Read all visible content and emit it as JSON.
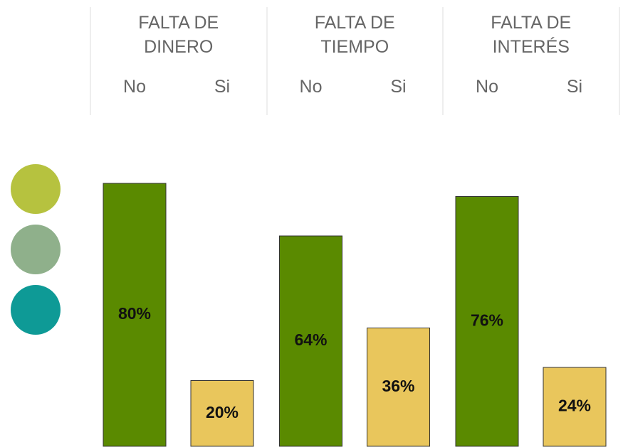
{
  "chart_data": {
    "type": "bar",
    "groups": [
      "FALTA DE DINERO",
      "FALTA DE TIEMPO",
      "FALTA DE INTERÉS"
    ],
    "series": [
      {
        "name": "No",
        "color": "#5a8a00",
        "values": [
          80,
          64,
          76
        ],
        "value_labels": [
          "80%",
          "64%",
          "76%"
        ]
      },
      {
        "name": "Si",
        "color": "#e9c65c",
        "values": [
          20,
          36,
          24
        ],
        "value_labels": [
          "20%",
          "36%",
          "24%"
        ]
      }
    ]
  }
}
